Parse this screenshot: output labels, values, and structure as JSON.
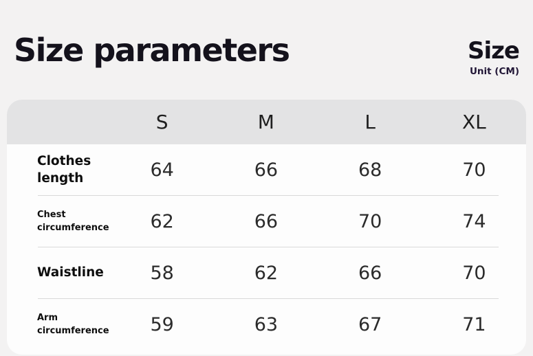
{
  "header": {
    "title": "Size parameters",
    "size_label": "Size",
    "unit_label": "Unit (CM)"
  },
  "table": {
    "columns": [
      "S",
      "M",
      "L",
      "XL"
    ],
    "rows": [
      {
        "label": "Clothes length",
        "values": [
          64,
          66,
          68,
          70
        ]
      },
      {
        "label": "Chest circumference",
        "values": [
          62,
          66,
          70,
          74
        ]
      },
      {
        "label": "Waistline",
        "values": [
          58,
          62,
          66,
          70
        ]
      },
      {
        "label": "Arm circumference",
        "values": [
          59,
          63,
          67,
          71
        ]
      }
    ]
  },
  "chart_data": {
    "type": "table",
    "title": "Size parameters",
    "unit": "CM",
    "columns": [
      "S",
      "M",
      "L",
      "XL"
    ],
    "rows": [
      {
        "label": "Clothes length",
        "values": [
          64,
          66,
          68,
          70
        ]
      },
      {
        "label": "Chest circumference",
        "values": [
          62,
          66,
          70,
          74
        ]
      },
      {
        "label": "Waistline",
        "values": [
          58,
          62,
          66,
          70
        ]
      },
      {
        "label": "Arm circumference",
        "values": [
          59,
          63,
          67,
          71
        ]
      }
    ]
  },
  "colors": {
    "page_background": "#f3f2f2",
    "card_background": "#fdfdfd",
    "header_row_background": "#e3e3e4",
    "separator": "#d9d9d9",
    "text_primary": "#14121c"
  }
}
